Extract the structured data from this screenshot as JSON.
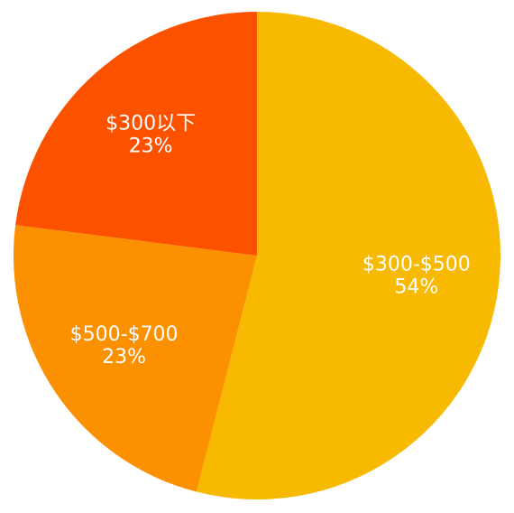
{
  "chart_data": {
    "type": "pie",
    "categories": [
      "$300-$500",
      "$500-$700",
      "$300以下"
    ],
    "values": [
      54,
      23,
      23
    ],
    "value_labels": [
      "54%",
      "23%",
      "23%"
    ],
    "colors": [
      "#f8ba00",
      "#fb9100",
      "#fc5200"
    ]
  }
}
